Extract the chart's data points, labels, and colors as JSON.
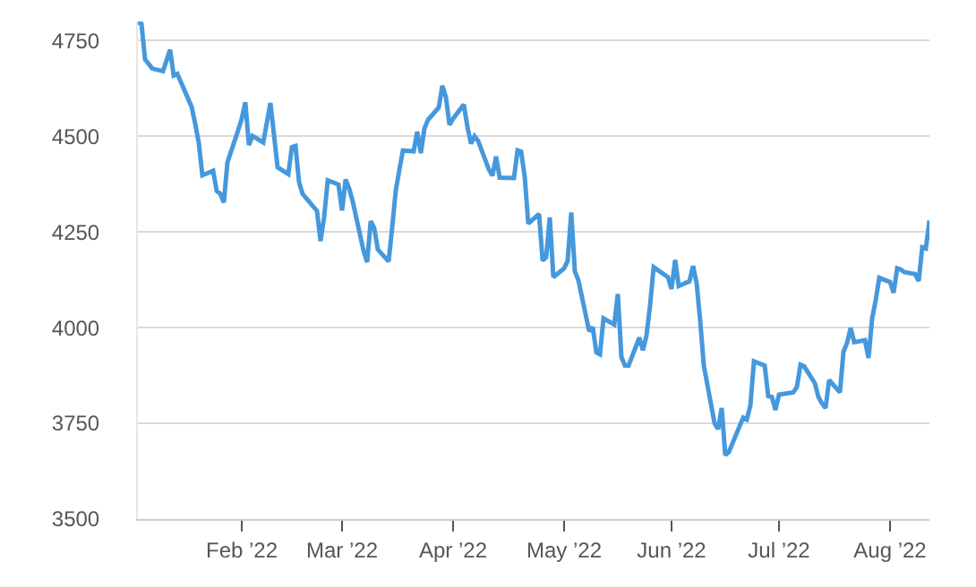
{
  "chart_data": {
    "type": "line",
    "x": [
      "2022-01-03",
      "2022-01-04",
      "2022-01-05",
      "2022-01-07",
      "2022-01-10",
      "2022-01-12",
      "2022-01-13",
      "2022-01-14",
      "2022-01-18",
      "2022-01-19",
      "2022-01-20",
      "2022-01-21",
      "2022-01-24",
      "2022-01-25",
      "2022-01-26",
      "2022-01-27",
      "2022-01-28",
      "2022-01-31",
      "2022-02-01",
      "2022-02-02",
      "2022-02-03",
      "2022-02-04",
      "2022-02-07",
      "2022-02-09",
      "2022-02-10",
      "2022-02-11",
      "2022-02-14",
      "2022-02-15",
      "2022-02-16",
      "2022-02-17",
      "2022-02-18",
      "2022-02-22",
      "2022-02-23",
      "2022-02-24",
      "2022-02-25",
      "2022-02-28",
      "2022-03-01",
      "2022-03-02",
      "2022-03-03",
      "2022-03-04",
      "2022-03-07",
      "2022-03-08",
      "2022-03-09",
      "2022-03-10",
      "2022-03-11",
      "2022-03-14",
      "2022-03-15",
      "2022-03-16",
      "2022-03-17",
      "2022-03-18",
      "2022-03-21",
      "2022-03-22",
      "2022-03-23",
      "2022-03-24",
      "2022-03-25",
      "2022-03-28",
      "2022-03-29",
      "2022-03-30",
      "2022-03-31",
      "2022-04-01",
      "2022-04-04",
      "2022-04-05",
      "2022-04-06",
      "2022-04-07",
      "2022-04-08",
      "2022-04-11",
      "2022-04-12",
      "2022-04-13",
      "2022-04-14",
      "2022-04-18",
      "2022-04-19",
      "2022-04-20",
      "2022-04-21",
      "2022-04-22",
      "2022-04-25",
      "2022-04-26",
      "2022-04-27",
      "2022-04-28",
      "2022-04-29",
      "2022-05-02",
      "2022-05-03",
      "2022-05-04",
      "2022-05-05",
      "2022-05-06",
      "2022-05-09",
      "2022-05-10",
      "2022-05-11",
      "2022-05-12",
      "2022-05-13",
      "2022-05-16",
      "2022-05-17",
      "2022-05-18",
      "2022-05-19",
      "2022-05-20",
      "2022-05-23",
      "2022-05-24",
      "2022-05-25",
      "2022-05-26",
      "2022-05-27",
      "2022-05-31",
      "2022-06-01",
      "2022-06-02",
      "2022-06-03",
      "2022-06-06",
      "2022-06-07",
      "2022-06-08",
      "2022-06-09",
      "2022-06-10",
      "2022-06-13",
      "2022-06-14",
      "2022-06-15",
      "2022-06-16",
      "2022-06-17",
      "2022-06-21",
      "2022-06-22",
      "2022-06-23",
      "2022-06-24",
      "2022-06-27",
      "2022-06-28",
      "2022-06-29",
      "2022-06-30",
      "2022-07-01",
      "2022-07-05",
      "2022-07-06",
      "2022-07-07",
      "2022-07-08",
      "2022-07-11",
      "2022-07-12",
      "2022-07-13",
      "2022-07-14",
      "2022-07-15",
      "2022-07-18",
      "2022-07-19",
      "2022-07-20",
      "2022-07-21",
      "2022-07-22",
      "2022-07-25",
      "2022-07-26",
      "2022-07-27",
      "2022-07-28",
      "2022-07-29",
      "2022-08-01",
      "2022-08-02",
      "2022-08-03",
      "2022-08-04",
      "2022-08-05",
      "2022-08-08",
      "2022-08-09",
      "2022-08-10",
      "2022-08-11",
      "2022-08-12"
    ],
    "series": [
      {
        "color": "#4698dc",
        "values": [
          4797,
          4794,
          4701,
          4677,
          4670,
          4726,
          4659,
          4663,
          4577,
          4533,
          4483,
          4398,
          4410,
          4357,
          4350,
          4327,
          4432,
          4516,
          4546,
          4589,
          4477,
          4501,
          4484,
          4587,
          4504,
          4419,
          4401,
          4472,
          4475,
          4380,
          4349,
          4305,
          4226,
          4289,
          4385,
          4374,
          4306,
          4387,
          4363,
          4329,
          4201,
          4171,
          4278,
          4260,
          4204,
          4173,
          4262,
          4358,
          4412,
          4463,
          4461,
          4512,
          4456,
          4520,
          4543,
          4575,
          4632,
          4602,
          4530,
          4546,
          4583,
          4525,
          4481,
          4500,
          4488,
          4413,
          4397,
          4447,
          4392,
          4391,
          4463,
          4460,
          4394,
          4272,
          4297,
          4175,
          4184,
          4288,
          4132,
          4155,
          4175,
          4301,
          4147,
          4123,
          3991,
          4001,
          3935,
          3930,
          4024,
          4008,
          4088,
          3923,
          3901,
          3901,
          3974,
          3941,
          3979,
          4058,
          4158,
          4132,
          4101,
          4177,
          4109,
          4121,
          4161,
          4116,
          4018,
          3901,
          3750,
          3735,
          3790,
          3667,
          3675,
          3765,
          3760,
          3796,
          3912,
          3901,
          3821,
          3819,
          3785,
          3825,
          3831,
          3845,
          3903,
          3899,
          3855,
          3819,
          3802,
          3790,
          3863,
          3831,
          3937,
          3960,
          3999,
          3962,
          3967,
          3921,
          4024,
          4072,
          4130,
          4119,
          4091,
          4155,
          4152,
          4145,
          4140,
          4122,
          4210,
          4207,
          4280
        ]
      }
    ],
    "xlim": [
      "2022-01-03",
      "2022-08-12"
    ],
    "xticks": [
      {
        "value": "2022-02-01",
        "label": "Feb ’22"
      },
      {
        "value": "2022-03-01",
        "label": "Mar ’22"
      },
      {
        "value": "2022-04-01",
        "label": "Apr ’22"
      },
      {
        "value": "2022-05-02",
        "label": "May ’22"
      },
      {
        "value": "2022-06-01",
        "label": "Jun ’22"
      },
      {
        "value": "2022-07-01",
        "label": "Jul ’22"
      },
      {
        "value": "2022-08-01",
        "label": "Aug ’22"
      }
    ],
    "ylim": [
      3500,
      4800
    ],
    "yticks": [
      3500,
      3750,
      4000,
      4250,
      4500,
      4750
    ],
    "grid": "y",
    "legend": false,
    "marker": "none",
    "line_style": "solid"
  }
}
